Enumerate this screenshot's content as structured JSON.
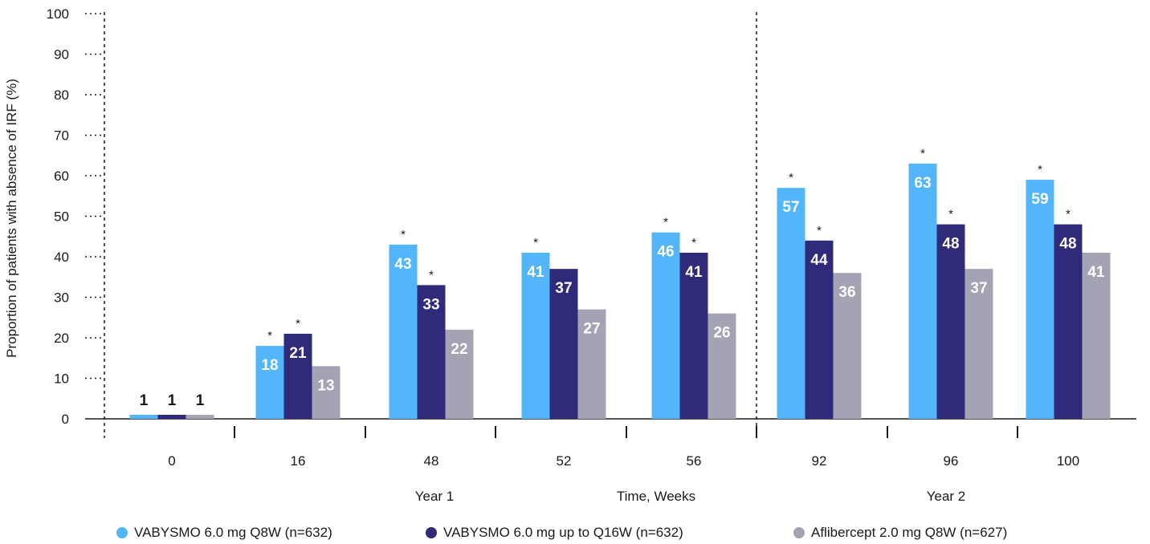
{
  "chart_data": {
    "type": "bar",
    "ylabel": "Proportion of patients with absence of IRF (%)",
    "xlabel": "Time, Weeks",
    "ylim": [
      0,
      100
    ],
    "yticks": [
      "0",
      "10",
      "20",
      "30",
      "40",
      "50",
      "60",
      "70",
      "80",
      "90",
      "100"
    ],
    "categories": [
      "0",
      "16",
      "48",
      "52",
      "56",
      "92",
      "96",
      "100"
    ],
    "period_labels": [
      "Year 1",
      "Year 2"
    ],
    "series": [
      {
        "name": "VABYSMO 6.0 mg Q8W (n=632)",
        "color": "#53b6fb",
        "values": [
          1,
          18,
          43,
          41,
          46,
          57,
          63,
          59
        ],
        "labels": [
          "1",
          "18",
          "43",
          "41",
          "46",
          "57",
          "63",
          "59"
        ],
        "asterisk": [
          false,
          true,
          true,
          true,
          true,
          true,
          true,
          true
        ]
      },
      {
        "name": "VABYSMO 6.0 mg up to Q16W (n=632)",
        "color": "#302a7a",
        "values": [
          1,
          21,
          33,
          37,
          41,
          44,
          48,
          48
        ],
        "labels": [
          "1",
          "21",
          "33",
          "37",
          "41",
          "44",
          "48",
          "48"
        ],
        "asterisk": [
          false,
          true,
          true,
          false,
          true,
          true,
          true,
          true
        ]
      },
      {
        "name": "Aflibercept 2.0 mg Q8W (n=627)",
        "color": "#a4a3b3",
        "values": [
          1,
          13,
          22,
          27,
          26,
          36,
          37,
          41
        ],
        "labels": [
          "1",
          "13",
          "22",
          "27",
          "26",
          "36",
          "37",
          "41"
        ],
        "asterisk": [
          false,
          false,
          false,
          false,
          false,
          false,
          false,
          false
        ]
      }
    ],
    "asterisk_symbol": "*",
    "grid": false,
    "legend_position": "bottom"
  }
}
